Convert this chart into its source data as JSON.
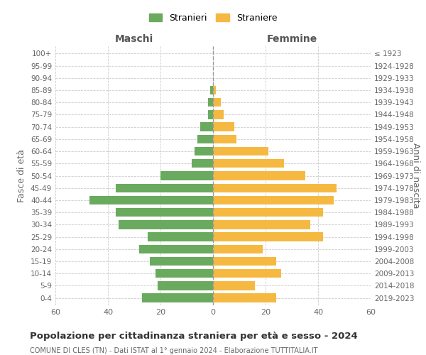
{
  "age_groups": [
    "0-4",
    "5-9",
    "10-14",
    "15-19",
    "20-24",
    "25-29",
    "30-34",
    "35-39",
    "40-44",
    "45-49",
    "50-54",
    "55-59",
    "60-64",
    "65-69",
    "70-74",
    "75-79",
    "80-84",
    "85-89",
    "90-94",
    "95-99",
    "100+"
  ],
  "birth_years": [
    "2019-2023",
    "2014-2018",
    "2009-2013",
    "2004-2008",
    "1999-2003",
    "1994-1998",
    "1989-1993",
    "1984-1988",
    "1979-1983",
    "1974-1978",
    "1969-1973",
    "1964-1968",
    "1959-1963",
    "1954-1958",
    "1949-1953",
    "1944-1948",
    "1939-1943",
    "1934-1938",
    "1929-1933",
    "1924-1928",
    "≤ 1923"
  ],
  "maschi": [
    27,
    21,
    22,
    24,
    28,
    25,
    36,
    37,
    47,
    37,
    20,
    8,
    7,
    6,
    5,
    2,
    2,
    1,
    0,
    0,
    0
  ],
  "femmine": [
    24,
    16,
    26,
    24,
    19,
    42,
    37,
    42,
    46,
    47,
    35,
    27,
    21,
    9,
    8,
    4,
    3,
    1,
    0,
    0,
    0
  ],
  "color_maschi": "#6aaa5e",
  "color_femmine": "#f5b942",
  "title": "Popolazione per cittadinanza straniera per età e sesso - 2024",
  "subtitle": "COMUNE DI CLES (TN) - Dati ISTAT al 1° gennaio 2024 - Elaborazione TUTTITALIA.IT",
  "label_maschi": "Stranieri",
  "label_femmine": "Straniere",
  "xlabel_left": "Maschi",
  "xlabel_right": "Femmine",
  "ylabel_left": "Fasce di età",
  "ylabel_right": "Anni di nascita",
  "xlim": 60,
  "background_color": "#ffffff",
  "grid_color": "#cccccc"
}
